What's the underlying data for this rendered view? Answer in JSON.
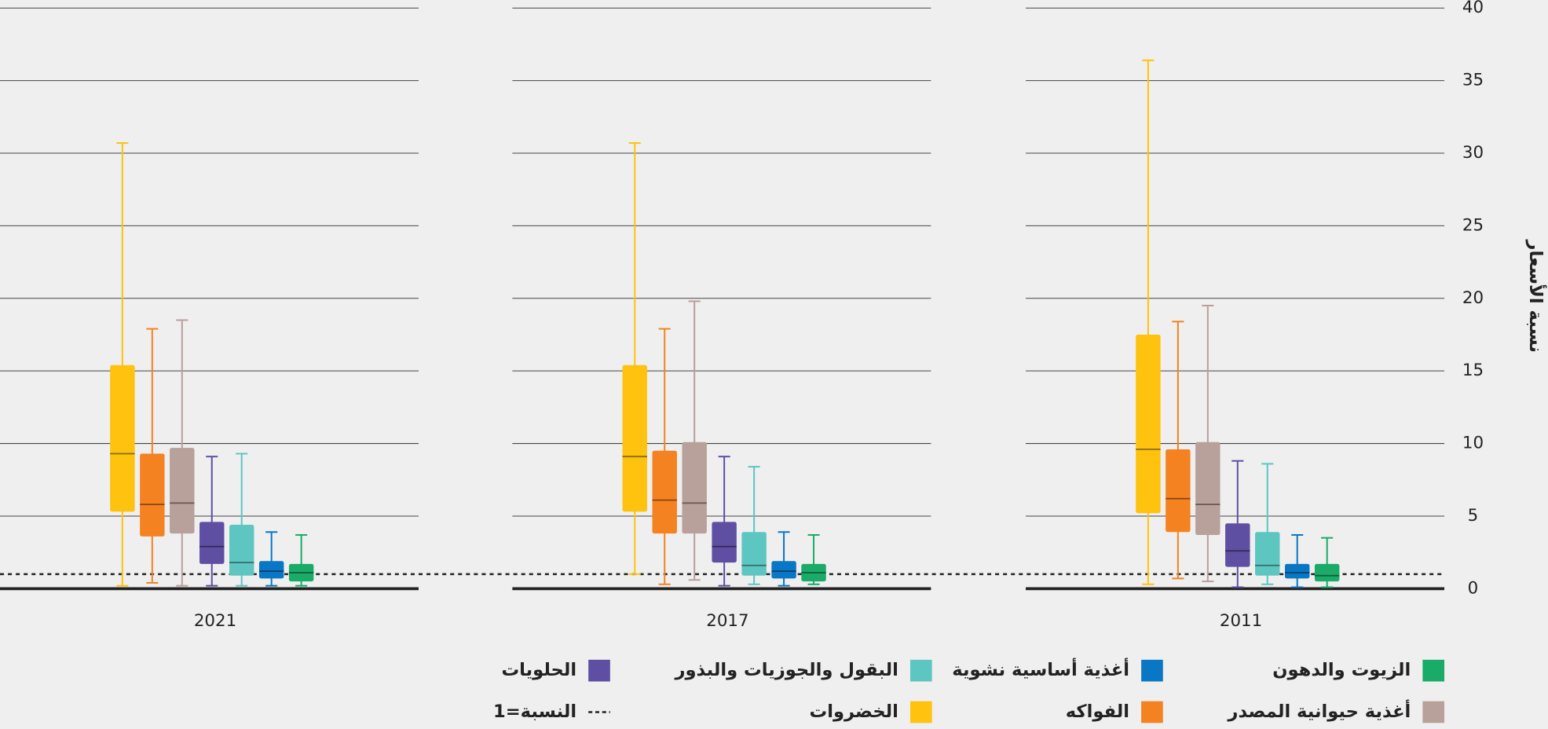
{
  "chart_data": {
    "type": "box",
    "ylabel": "نسبة الأسعار",
    "ylim": [
      0,
      40
    ],
    "yticks": [
      0,
      5,
      10,
      15,
      20,
      25,
      30,
      35,
      40
    ],
    "grid": true,
    "reference_line": {
      "value": 1,
      "label": "النسبة=1"
    },
    "categories": [
      "2021",
      "2017",
      "2011"
    ],
    "series": [
      {
        "name": "الخضروات",
        "color": "#fec20f",
        "values": [
          {
            "min": 0.2,
            "q1": 5.3,
            "median": 9.3,
            "q3": 15.4,
            "max": 30.7
          },
          {
            "min": 1.0,
            "q1": 5.3,
            "median": 9.1,
            "q3": 15.4,
            "max": 30.7
          },
          {
            "min": 0.3,
            "q1": 5.2,
            "median": 9.6,
            "q3": 17.5,
            "max": 36.4
          }
        ]
      },
      {
        "name": "الفواكه",
        "color": "#f58220",
        "values": [
          {
            "min": 0.4,
            "q1": 3.6,
            "median": 5.8,
            "q3": 9.3,
            "max": 17.9
          },
          {
            "min": 0.3,
            "q1": 3.8,
            "median": 6.1,
            "q3": 9.5,
            "max": 17.9
          },
          {
            "min": 0.7,
            "q1": 3.9,
            "median": 6.2,
            "q3": 9.6,
            "max": 18.4
          }
        ]
      },
      {
        "name": "أغذية حيوانية المصدر",
        "color": "#b8a09b",
        "values": [
          {
            "min": 0.2,
            "q1": 3.8,
            "median": 5.9,
            "q3": 9.7,
            "max": 18.5
          },
          {
            "min": 0.6,
            "q1": 3.8,
            "median": 5.9,
            "q3": 10.1,
            "max": 19.8
          },
          {
            "min": 0.5,
            "q1": 3.7,
            "median": 5.8,
            "q3": 10.1,
            "max": 19.5
          }
        ]
      },
      {
        "name": "الحلويات",
        "color": "#5e4fa2",
        "values": [
          {
            "min": 0.2,
            "q1": 1.7,
            "median": 2.9,
            "q3": 4.6,
            "max": 9.1
          },
          {
            "min": 0.2,
            "q1": 1.8,
            "median": 2.9,
            "q3": 4.6,
            "max": 9.1
          },
          {
            "min": 0.1,
            "q1": 1.5,
            "median": 2.6,
            "q3": 4.5,
            "max": 8.8
          }
        ]
      },
      {
        "name": "البقول والجوزيات والبذور",
        "color": "#5dc6c1",
        "values": [
          {
            "min": 0.2,
            "q1": 0.9,
            "median": 1.8,
            "q3": 4.4,
            "max": 9.3
          },
          {
            "min": 0.3,
            "q1": 0.9,
            "median": 1.6,
            "q3": 3.9,
            "max": 8.4
          },
          {
            "min": 0.3,
            "q1": 0.9,
            "median": 1.6,
            "q3": 3.9,
            "max": 8.6
          }
        ]
      },
      {
        "name": "أغذية أساسية نشوية",
        "color": "#0a77c5",
        "values": [
          {
            "min": 0.2,
            "q1": 0.7,
            "median": 1.2,
            "q3": 1.9,
            "max": 3.9
          },
          {
            "min": 0.2,
            "q1": 0.7,
            "median": 1.2,
            "q3": 1.9,
            "max": 3.9
          },
          {
            "min": 0.1,
            "q1": 0.7,
            "median": 1.1,
            "q3": 1.7,
            "max": 3.7
          }
        ]
      },
      {
        "name": "الزيوت والدهون",
        "color": "#1aab68",
        "values": [
          {
            "min": 0.2,
            "q1": 0.5,
            "median": 1.1,
            "q3": 1.7,
            "max": 3.7
          },
          {
            "min": 0.3,
            "q1": 0.5,
            "median": 1.1,
            "q3": 1.7,
            "max": 3.7
          },
          {
            "min": 0.1,
            "q1": 0.5,
            "median": 0.9,
            "q3": 1.7,
            "max": 3.5
          }
        ]
      }
    ]
  }
}
